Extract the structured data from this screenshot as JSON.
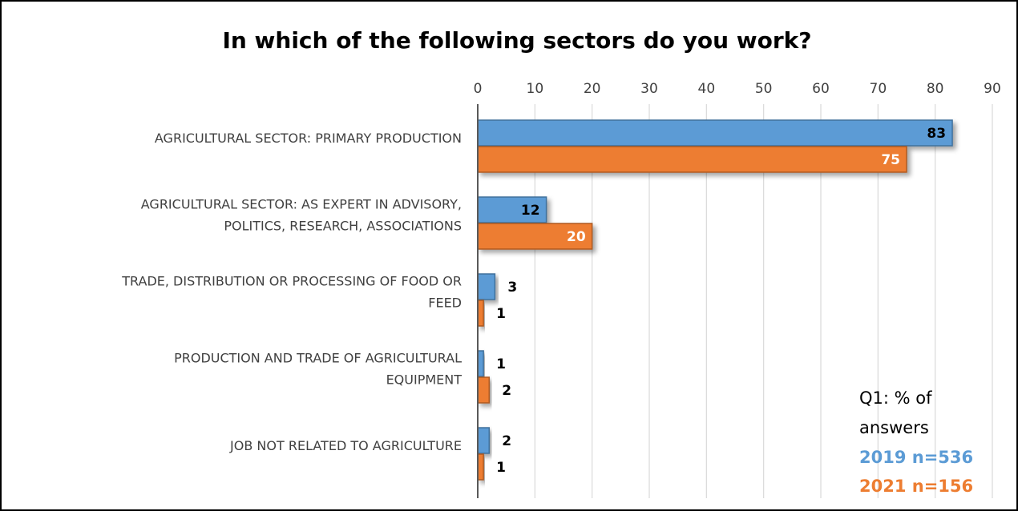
{
  "chart_data": {
    "type": "bar",
    "orientation": "horizontal",
    "title": "In which of the following sectors do you work?",
    "categories": [
      [
        "AGRICULTURAL SECTOR: PRIMARY PRODUCTION"
      ],
      [
        "AGRICULTURAL SECTOR: AS EXPERT IN ADVISORY,",
        "POLITICS, RESEARCH, ASSOCIATIONS"
      ],
      [
        "TRADE, DISTRIBUTION OR PROCESSING OF FOOD OR",
        "FEED"
      ],
      [
        "PRODUCTION AND TRADE OF AGRICULTURAL",
        "EQUIPMENT"
      ],
      [
        "JOB NOT RELATED TO AGRICULTURE"
      ]
    ],
    "series": [
      {
        "values": [
          83,
          12,
          3,
          1,
          2
        ],
        "color": "#5B9BD5",
        "stroke": "#41719C",
        "label_color": "#000000"
      },
      {
        "values": [
          75,
          20,
          1,
          2,
          1
        ],
        "color": "#ED7D31",
        "stroke": "#AE5A21",
        "label_color": "#ffffff"
      }
    ],
    "xlim": [
      0,
      90
    ],
    "xticks": [
      "0",
      "10",
      "20",
      "30",
      "40",
      "50",
      "60",
      "70",
      "80",
      "90"
    ],
    "axis_position": "top",
    "grid": true,
    "legend_position": "bottom-right"
  },
  "note": {
    "line1": "Q1: % of",
    "line2": "answers",
    "series1": "2019 n=536",
    "series2": "2021 n=156",
    "color1": "#5B9BD5",
    "color2": "#ED7D31"
  }
}
